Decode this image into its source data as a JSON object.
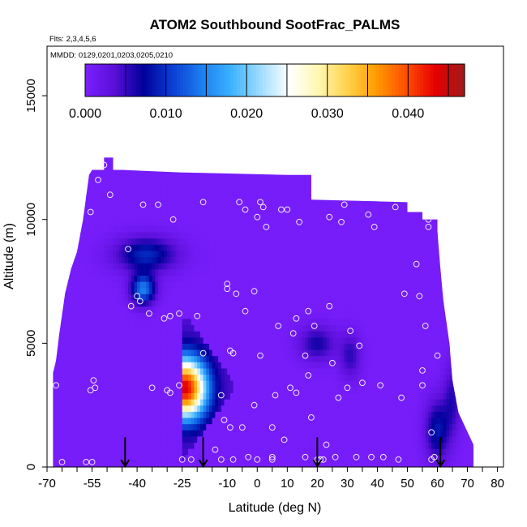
{
  "chart_data": {
    "type": "heatmap",
    "title": "ATOM2 Southbound SootFrac_PALMS",
    "flights_note": "Flts: 2,3,4,5,6",
    "dates_note": "MMDD: 0129,0201,0203,0205,0210",
    "xlabel": "Latitude (deg N)",
    "ylabel": "Altitude (m)",
    "xlim": [
      -70,
      82
    ],
    "ylim": [
      0,
      17000
    ],
    "x_ticks": [
      "-70",
      "-55",
      "-40",
      "-25",
      "-10",
      "0",
      "10",
      "20",
      "30",
      "40",
      "50",
      "60",
      "70",
      "80"
    ],
    "y_ticks": [
      "0",
      "5000",
      "10000",
      "15000"
    ],
    "colorbar": {
      "min": 0,
      "max": 0.047,
      "tick_values": [
        0.0,
        0.01,
        0.02,
        0.03,
        0.04
      ],
      "tick_labels": [
        "0.000",
        "0.010",
        "0.020",
        "0.030",
        "0.040"
      ],
      "colors": [
        "#7b1fff",
        "#5a0fd8",
        "#00009a",
        "#0b3fd4",
        "#1c7ff0",
        "#3bb2ff",
        "#9fdcff",
        "#ffffff",
        "#fff7b0",
        "#ffd24a",
        "#ff9900",
        "#ff4d00",
        "#e60000",
        "#a01a1a"
      ]
    },
    "domain": [
      [
        -68,
        3300
      ],
      [
        -68,
        3800
      ],
      [
        -67,
        4300
      ],
      [
        -66,
        5300
      ],
      [
        -64,
        7000
      ],
      [
        -62,
        8000
      ],
      [
        -60,
        8700
      ],
      [
        -58,
        10000
      ],
      [
        -56,
        11800
      ],
      [
        -55,
        12000
      ],
      [
        -45,
        12000
      ],
      [
        -25,
        11900
      ],
      [
        10,
        11800
      ],
      [
        18,
        11800
      ],
      [
        18,
        10800
      ],
      [
        50,
        10700
      ],
      [
        50,
        10300
      ],
      [
        55,
        10300
      ],
      [
        55,
        10000
      ],
      [
        60,
        10000
      ],
      [
        60,
        9500
      ],
      [
        61,
        8000
      ],
      [
        62,
        6700
      ],
      [
        64,
        5000
      ],
      [
        65,
        3500
      ],
      [
        67,
        2200
      ],
      [
        72,
        900
      ],
      [
        72,
        0
      ],
      [
        -68,
        0
      ]
    ],
    "domain_top_bump": [
      [
        -51,
        12000
      ],
      [
        -51,
        12500
      ],
      [
        -48,
        12500
      ],
      [
        -48,
        12000
      ]
    ],
    "blobs": [
      {
        "lat": -37,
        "alt": 8600,
        "wlat": 10,
        "walt": 700,
        "value": 0.009
      },
      {
        "lat": -38,
        "alt": 7200,
        "wlat": 4,
        "walt": 600,
        "value": 0.014
      },
      {
        "lat": 20,
        "alt": 5000,
        "wlat": 6,
        "walt": 700,
        "value": 0.006
      },
      {
        "lat": 31,
        "alt": 4500,
        "wlat": 3.5,
        "walt": 900,
        "value": 0.005
      },
      {
        "lat": 60,
        "alt": 1500,
        "wlat": 4,
        "walt": 1200,
        "value": 0.008
      },
      {
        "lat": 65,
        "alt": 2800,
        "wlat": 3,
        "walt": 1400,
        "value": 0.005
      }
    ],
    "plume": {
      "lat_edge": -25,
      "top_alt": 6000,
      "tip_lat": -8,
      "tip_alt": 3300,
      "peak_lat": -24,
      "peak_alt": 3200,
      "peak_value": 0.04
    },
    "samples": [
      [
        -67,
        3300
      ],
      [
        -65,
        200
      ],
      [
        -57,
        200
      ],
      [
        -55,
        200
      ],
      [
        -55.5,
        3100
      ],
      [
        -54.5,
        3500
      ],
      [
        -54,
        3200
      ],
      [
        -53,
        11600
      ],
      [
        -51,
        12200
      ],
      [
        -55.5,
        10300
      ],
      [
        -49,
        11000
      ],
      [
        -43,
        8800
      ],
      [
        -42,
        6500
      ],
      [
        -40,
        6900
      ],
      [
        -39,
        6700
      ],
      [
        -38,
        10600
      ],
      [
        -36,
        6200
      ],
      [
        -35,
        3200
      ],
      [
        -33,
        10600
      ],
      [
        -31,
        6000
      ],
      [
        -30,
        3100
      ],
      [
        -29,
        6100
      ],
      [
        -29,
        3000
      ],
      [
        -28,
        10000
      ],
      [
        -26,
        6200
      ],
      [
        -26,
        3300
      ],
      [
        -25,
        300
      ],
      [
        -22,
        300
      ],
      [
        -20,
        6100
      ],
      [
        -18,
        4600
      ],
      [
        -18,
        10700
      ],
      [
        -14,
        700
      ],
      [
        -12,
        300
      ],
      [
        -12,
        2900
      ],
      [
        -11,
        1900
      ],
      [
        -10,
        7200
      ],
      [
        -10,
        7400
      ],
      [
        -9,
        4700
      ],
      [
        -9,
        1600
      ],
      [
        -8,
        4600
      ],
      [
        -8,
        300
      ],
      [
        -7,
        7000
      ],
      [
        -6,
        10700
      ],
      [
        -5,
        1600
      ],
      [
        -4,
        6300
      ],
      [
        -4,
        10400
      ],
      [
        -3,
        400
      ],
      [
        -1,
        2500
      ],
      [
        -1,
        7100
      ],
      [
        0,
        300
      ],
      [
        0,
        10100
      ],
      [
        1,
        4500
      ],
      [
        1,
        10700
      ],
      [
        2,
        10500
      ],
      [
        3,
        9700
      ],
      [
        5,
        1600
      ],
      [
        5,
        400
      ],
      [
        5,
        300
      ],
      [
        6,
        2900
      ],
      [
        7,
        5700
      ],
      [
        8,
        10400
      ],
      [
        9,
        1100
      ],
      [
        10,
        10400
      ],
      [
        11,
        3200
      ],
      [
        12,
        5400
      ],
      [
        13,
        3000
      ],
      [
        13,
        6000
      ],
      [
        14,
        9900
      ],
      [
        16,
        400
      ],
      [
        16,
        4500
      ],
      [
        17,
        3700
      ],
      [
        17,
        6300
      ],
      [
        18,
        2000
      ],
      [
        19,
        5700
      ],
      [
        20,
        300
      ],
      [
        21,
        300
      ],
      [
        22,
        300
      ],
      [
        23,
        900
      ],
      [
        24,
        10100
      ],
      [
        24,
        6500
      ],
      [
        25,
        4200
      ],
      [
        26,
        400
      ],
      [
        27,
        2800
      ],
      [
        28,
        9900
      ],
      [
        29,
        10600
      ],
      [
        30,
        3200
      ],
      [
        31,
        5500
      ],
      [
        33,
        400
      ],
      [
        34,
        4900
      ],
      [
        35,
        3400
      ],
      [
        37,
        10200
      ],
      [
        38,
        400
      ],
      [
        39,
        9700
      ],
      [
        41,
        3300
      ],
      [
        42,
        400
      ],
      [
        46,
        10500
      ],
      [
        47,
        300
      ],
      [
        48,
        2800
      ],
      [
        49,
        7000
      ],
      [
        53,
        8200
      ],
      [
        54,
        6900
      ],
      [
        55,
        3900
      ],
      [
        55,
        3300
      ],
      [
        56,
        5700
      ],
      [
        57,
        10000
      ],
      [
        57,
        9700
      ],
      [
        58,
        300
      ],
      [
        58,
        1400
      ],
      [
        59,
        400
      ],
      [
        60,
        4500
      ]
    ],
    "arrows_lat": [
      -44,
      -18,
      20,
      61
    ]
  }
}
